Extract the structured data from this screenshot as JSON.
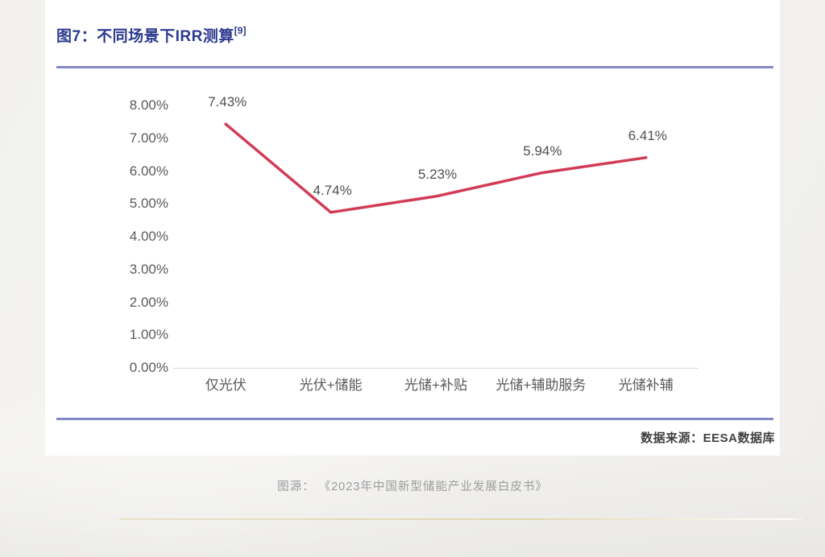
{
  "page": {
    "title": "图7：不同场景下IRR测算",
    "title_ref": "[9]",
    "source_note": "数据来源：EESA数据库",
    "caption": "图源： 《2023年中国新型储能产业发展白皮书》"
  },
  "colors": {
    "title": "#2c3a8e",
    "separator": "#8289c3",
    "line": "#d23b56",
    "axis_label": "#5a5a5a",
    "data_label": "#4f4f4f",
    "source": "#3f3f3f",
    "caption": "#9d9d9d"
  },
  "chart_data": {
    "type": "line",
    "title": "图7：不同场景下IRR测算",
    "categories": [
      "仅光伏",
      "光伏+储能",
      "光储+补贴",
      "光储+辅助服务",
      "光储补辅"
    ],
    "values": [
      7.43,
      4.74,
      5.23,
      5.94,
      6.41
    ],
    "point_labels": [
      "7.43%",
      "4.74%",
      "5.23%",
      "5.94%",
      "6.41%"
    ],
    "xlabel": "",
    "ylabel": "",
    "ylim": [
      0,
      8
    ],
    "ytick_step": 1,
    "ytick_labels": [
      "8.00%",
      "7.00%",
      "6.00%",
      "5.00%",
      "4.00%",
      "3.00%",
      "2.00%",
      "1.00%",
      "0.00%"
    ],
    "grid": false,
    "legend_position": "none",
    "line_color": "#d23b56"
  }
}
